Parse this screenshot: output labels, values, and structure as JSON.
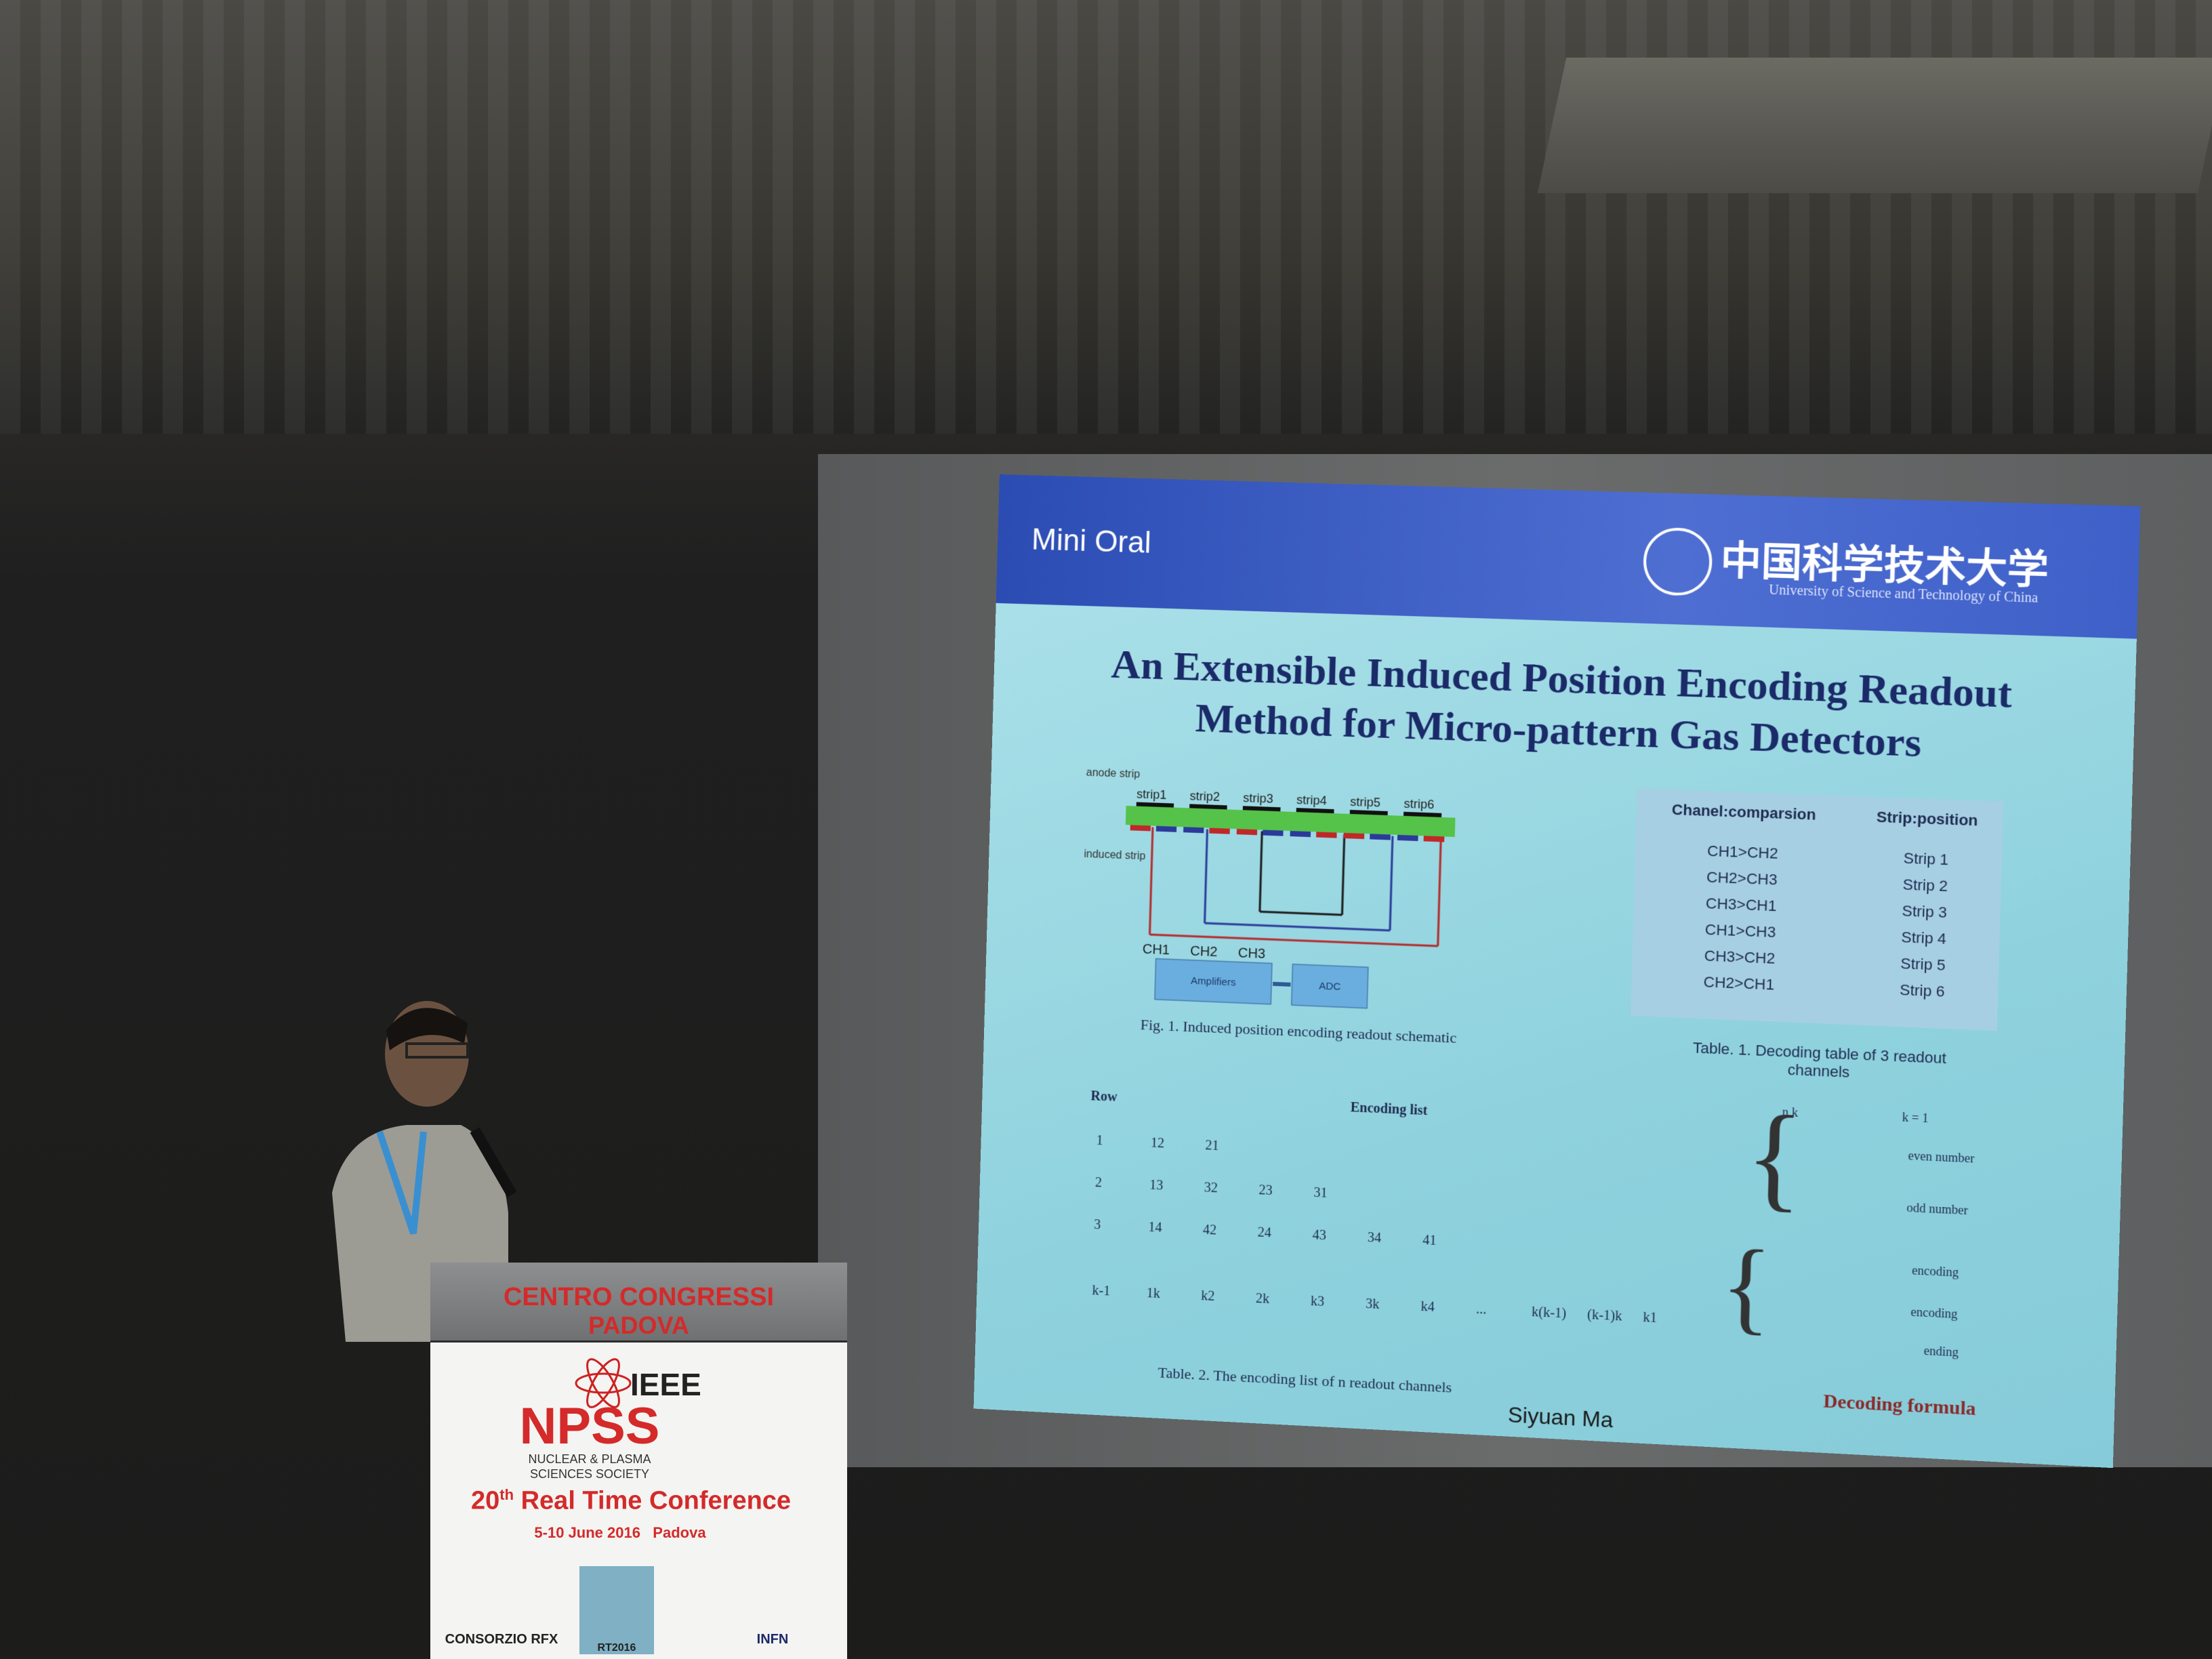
{
  "slide": {
    "header": "Mini Oral",
    "university": "中国科学技术大学",
    "university_en": "University of Science and Technology of China",
    "title_line1": "An Extensible Induced Position Encoding Readout",
    "title_line2": "Method for Micro-pattern Gas Detectors",
    "figure": {
      "anode_label": "anode strip",
      "induced_label": "induced strip",
      "strips": [
        "strip1",
        "strip2",
        "strip3",
        "strip4",
        "strip5",
        "strip6"
      ],
      "channels": [
        "CH1",
        "CH2",
        "CH3"
      ],
      "amplifiers": "Amplifiers",
      "adc": "ADC",
      "caption": "Fig. 1. Induced position encoding readout schematic"
    },
    "table1": {
      "headers": [
        "Chanel:comparsion",
        "Strip:position"
      ],
      "rows": [
        [
          "CH1>CH2",
          "Strip 1"
        ],
        [
          "CH2>CH3",
          "Strip 2"
        ],
        [
          "CH3>CH1",
          "Strip 3"
        ],
        [
          "CH1>CH3",
          "Strip 4"
        ],
        [
          "CH3>CH2",
          "Strip 5"
        ],
        [
          "CH2>CH1",
          "Strip 6"
        ]
      ],
      "caption": "Table. 1. Decoding table of 3 readout channels"
    },
    "table2": {
      "headers": [
        "Row",
        "Encoding list"
      ],
      "rows": [
        [
          "1",
          "12",
          "21"
        ],
        [
          "2",
          "13",
          "32",
          "23",
          "31"
        ],
        [
          "3",
          "14",
          "42",
          "24",
          "43",
          "34",
          "41"
        ],
        [
          "k-1",
          "1k",
          "k2",
          "2k",
          "k3",
          "3k",
          "k4",
          "...",
          "k(k-1)",
          "(k-1)k",
          "k1"
        ]
      ],
      "caption": "Table. 2. The encoding list of n readout channels"
    },
    "formula_terms": [
      "n k",
      "k = 1",
      "even number",
      "odd number",
      "encoding",
      "encoding",
      "ending"
    ],
    "formula_caption": "Decoding formula",
    "presenter": "Siyuan Ma"
  },
  "podium": {
    "venue_line1": "CENTRO CONGRESSI",
    "venue_line2": "PADOVA",
    "org": "IEEE",
    "org_big": "NPSS",
    "org_sub1": "NUCLEAR & PLASMA",
    "org_sub2": "SCIENCES SOCIETY",
    "conference_ordinal": "20",
    "conference_sup": "th",
    "conference_name": "Real Time Conference",
    "dates": "5-10 June 2016   Padova",
    "sponsors": [
      "CONSORZIO RFX",
      "RT2016",
      "INFN"
    ]
  }
}
